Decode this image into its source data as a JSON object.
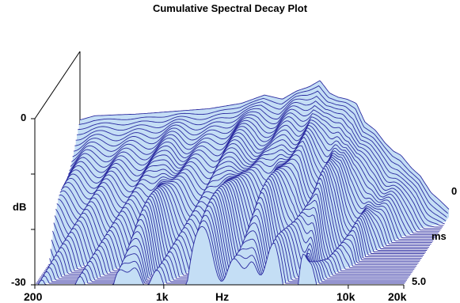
{
  "chart_data": {
    "type": "waterfall-3d",
    "title": "Cumulative Spectral Decay Plot",
    "xlabel": "Hz",
    "ylabel": "dB",
    "zlabel": "ms",
    "x_axis": {
      "scale": "log",
      "range": [
        200,
        20000
      ],
      "tick_labels": [
        "200",
        "1k",
        "10k",
        "20k"
      ]
    },
    "y_axis": {
      "range": [
        -30,
        0
      ],
      "tick_labels": [
        "0",
        "-30"
      ]
    },
    "z_axis": {
      "range": [
        0,
        5.0
      ],
      "tick_labels": [
        "0",
        "5.0"
      ]
    },
    "slice_count": 44,
    "initial_response": {
      "x_hz": [
        200,
        240,
        300,
        400,
        500,
        700,
        1000,
        1500,
        2000,
        2500,
        3000,
        3500,
        4000,
        4500,
        5000,
        5600,
        6300,
        7000,
        8000,
        9000,
        10000,
        11000,
        12500,
        14000,
        16000,
        18000,
        20000
      ],
      "y_db": [
        -2.5,
        -1.5,
        -1.3,
        -1.1,
        -0.8,
        -0.3,
        0.2,
        1.5,
        3.5,
        2.5,
        4.5,
        5.5,
        7.0,
        4.0,
        3.0,
        2.5,
        1.5,
        -3.0,
        -5.0,
        -8.0,
        -10.0,
        -11.0,
        -14.0,
        -16.0,
        -20.0,
        -22.0,
        -24.0
      ]
    },
    "fill_color": "#c4def5",
    "line_color": "#2a2aa0"
  },
  "labels": {
    "title": "Cumulative Spectral Decay Plot",
    "y_top": "0",
    "y_unit": "dB",
    "y_bottom": "-30",
    "x_start": "200",
    "x_1k": "1k",
    "x_unit": "Hz",
    "x_10k": "10k",
    "x_end": "20k",
    "z_start": "0",
    "z_unit": "ms",
    "z_end": "5.0"
  }
}
